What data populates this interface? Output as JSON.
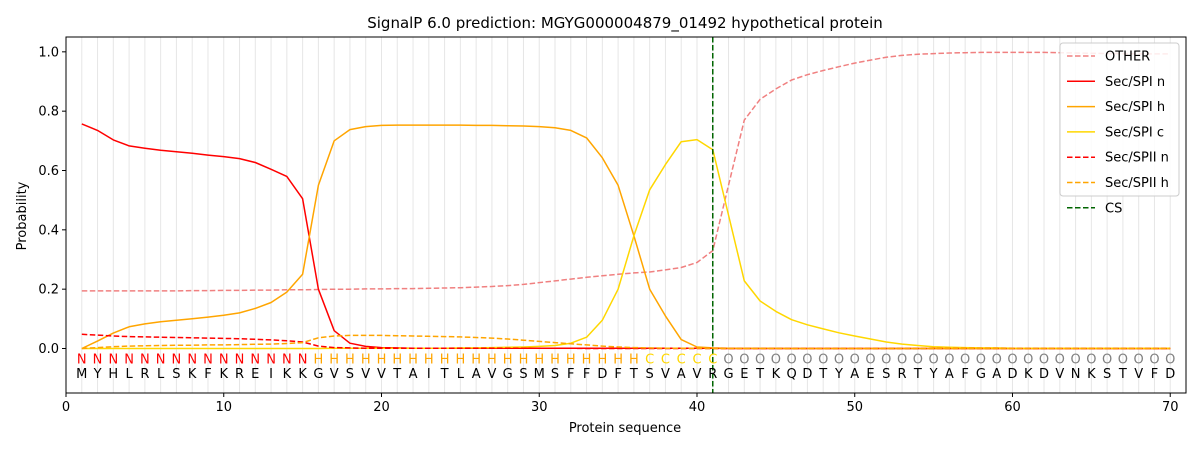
{
  "chart_data": {
    "type": "line",
    "title": "SignalP 6.0 prediction: MGYG000004879_01492 hypothetical protein",
    "xlabel": "Protein sequence",
    "ylabel": "Probability",
    "xlim": [
      0,
      71
    ],
    "ylim": [
      -0.15,
      1.05
    ],
    "xticks": [
      "0",
      "10",
      "20",
      "30",
      "40",
      "50",
      "60",
      "70"
    ],
    "yticks": [
      "0.0",
      "0.2",
      "0.4",
      "0.6",
      "0.8",
      "1.0"
    ],
    "legend_position": "top-right",
    "cleavage_site": 41,
    "sequence": [
      "M",
      "Y",
      "H",
      "L",
      "R",
      "L",
      "S",
      "K",
      "F",
      "K",
      "R",
      "E",
      "I",
      "K",
      "K",
      "G",
      "V",
      "S",
      "V",
      "V",
      "T",
      "A",
      "I",
      "T",
      "L",
      "A",
      "V",
      "G",
      "S",
      "M",
      "S",
      "F",
      "F",
      "D",
      "F",
      "T",
      "S",
      "V",
      "A",
      "V",
      "R",
      "G",
      "E",
      "T",
      "K",
      "Q",
      "D",
      "T",
      "Y",
      "A",
      "E",
      "S",
      "R",
      "T",
      "Y",
      "A",
      "F",
      "G",
      "A",
      "D",
      "K",
      "D",
      "V",
      "N",
      "K",
      "S",
      "T",
      "V",
      "F",
      "D"
    ],
    "region_labels": [
      "N",
      "N",
      "N",
      "N",
      "N",
      "N",
      "N",
      "N",
      "N",
      "N",
      "N",
      "N",
      "N",
      "N",
      "N",
      "H",
      "H",
      "H",
      "H",
      "H",
      "H",
      "H",
      "H",
      "H",
      "H",
      "H",
      "H",
      "H",
      "H",
      "H",
      "H",
      "H",
      "H",
      "H",
      "H",
      "H",
      "C",
      "C",
      "C",
      "C",
      "C",
      "O",
      "O",
      "O",
      "O",
      "O",
      "O",
      "O",
      "O",
      "O",
      "O",
      "O",
      "O",
      "O",
      "O",
      "O",
      "O",
      "O",
      "O",
      "O",
      "O",
      "O",
      "O",
      "O",
      "O",
      "O",
      "O",
      "O",
      "O",
      "O",
      "O"
    ],
    "region_colors": {
      "N": "#ff0000",
      "H": "#ffa500",
      "C": "#ffd700",
      "O": "#808080"
    },
    "series": [
      {
        "name": "OTHER",
        "color": "#f08080",
        "dash": "dashed",
        "values": [
          0.194,
          0.194,
          0.194,
          0.194,
          0.194,
          0.194,
          0.194,
          0.195,
          0.195,
          0.196,
          0.196,
          0.197,
          0.197,
          0.198,
          0.198,
          0.199,
          0.2,
          0.2,
          0.201,
          0.201,
          0.202,
          0.202,
          0.203,
          0.204,
          0.205,
          0.207,
          0.209,
          0.212,
          0.216,
          0.222,
          0.228,
          0.234,
          0.24,
          0.245,
          0.25,
          0.255,
          0.258,
          0.265,
          0.273,
          0.29,
          0.33,
          0.55,
          0.77,
          0.84,
          0.875,
          0.905,
          0.923,
          0.937,
          0.95,
          0.962,
          0.972,
          0.982,
          0.988,
          0.992,
          0.994,
          0.996,
          0.997,
          0.998,
          0.998,
          0.998,
          0.998,
          0.998,
          0.997,
          0.996,
          0.995,
          0.994,
          0.994,
          0.993,
          0.993,
          0.993
        ]
      },
      {
        "name": "Sec/SPI n",
        "color": "#ff0000",
        "dash": "solid",
        "values": [
          0.757,
          0.735,
          0.703,
          0.683,
          0.675,
          0.668,
          0.663,
          0.658,
          0.652,
          0.647,
          0.64,
          0.627,
          0.604,
          0.58,
          0.505,
          0.2,
          0.06,
          0.018,
          0.007,
          0.003,
          0.002,
          0.001,
          0.001,
          0.001,
          0.001,
          0.001,
          0.001,
          0.001,
          0.001,
          0.001,
          0.001,
          0.001,
          0.001,
          0.001,
          0.001,
          0.001,
          0.001,
          0.001,
          0.001,
          0.001,
          0.001,
          0.0,
          0.0,
          0.0,
          0.0,
          0.0,
          0.0,
          0.0,
          0.0,
          0.0,
          0.0,
          0.0,
          0.0,
          0.0,
          0.0,
          0.0,
          0.0,
          0.0,
          0.0,
          0.0,
          0.0,
          0.0,
          0.0,
          0.0,
          0.0,
          0.0,
          0.0,
          0.0,
          0.0,
          0.0
        ]
      },
      {
        "name": "Sec/SPI h",
        "color": "#ffa500",
        "dash": "solid",
        "values": [
          0.0,
          0.025,
          0.052,
          0.073,
          0.083,
          0.09,
          0.095,
          0.1,
          0.106,
          0.112,
          0.12,
          0.135,
          0.155,
          0.19,
          0.25,
          0.55,
          0.7,
          0.738,
          0.748,
          0.752,
          0.753,
          0.753,
          0.753,
          0.753,
          0.753,
          0.752,
          0.752,
          0.751,
          0.75,
          0.748,
          0.744,
          0.735,
          0.71,
          0.643,
          0.55,
          0.38,
          0.2,
          0.11,
          0.03,
          0.005,
          0.002,
          0.001,
          0.001,
          0.001,
          0.001,
          0.0,
          0.0,
          0.0,
          0.0,
          0.0,
          0.0,
          0.0,
          0.0,
          0.0,
          0.0,
          0.0,
          0.0,
          0.0,
          0.0,
          0.0,
          0.0,
          0.0,
          0.0,
          0.0,
          0.0,
          0.0,
          0.0,
          0.0,
          0.0,
          0.0
        ]
      },
      {
        "name": "Sec/SPI c",
        "color": "#ffd700",
        "dash": "solid",
        "values": [
          0.0,
          0.0,
          0.0,
          0.0,
          0.0,
          0.0,
          0.0,
          0.0,
          0.0,
          0.0,
          0.0,
          0.0,
          0.0,
          0.0,
          0.0,
          0.0,
          0.001,
          0.001,
          0.001,
          0.001,
          0.001,
          0.001,
          0.001,
          0.001,
          0.002,
          0.002,
          0.003,
          0.004,
          0.005,
          0.007,
          0.01,
          0.018,
          0.038,
          0.095,
          0.2,
          0.38,
          0.535,
          0.62,
          0.697,
          0.704,
          0.67,
          0.45,
          0.228,
          0.16,
          0.125,
          0.097,
          0.08,
          0.066,
          0.053,
          0.042,
          0.032,
          0.022,
          0.015,
          0.01,
          0.006,
          0.004,
          0.003,
          0.002,
          0.002,
          0.001,
          0.001,
          0.001,
          0.001,
          0.001,
          0.001,
          0.001,
          0.001,
          0.001,
          0.001,
          0.001
        ]
      },
      {
        "name": "Sec/SPII n",
        "color": "#ff0000",
        "dash": "dashed",
        "values": [
          0.048,
          0.045,
          0.042,
          0.04,
          0.039,
          0.038,
          0.037,
          0.036,
          0.035,
          0.034,
          0.033,
          0.031,
          0.029,
          0.026,
          0.022,
          0.008,
          0.003,
          0.002,
          0.001,
          0.001,
          0.001,
          0.001,
          0.001,
          0.001,
          0.001,
          0.001,
          0.001,
          0.001,
          0.001,
          0.001,
          0.001,
          0.001,
          0.0,
          0.0,
          0.0,
          0.0,
          0.0,
          0.0,
          0.0,
          0.0,
          0.0,
          0.0,
          0.0,
          0.0,
          0.0,
          0.0,
          0.0,
          0.0,
          0.0,
          0.0,
          0.0,
          0.0,
          0.0,
          0.0,
          0.0,
          0.0,
          0.0,
          0.0,
          0.0,
          0.0,
          0.0,
          0.0,
          0.0,
          0.0,
          0.0,
          0.0,
          0.0,
          0.0,
          0.0,
          0.0
        ]
      },
      {
        "name": "Sec/SPII h",
        "color": "#ffa500",
        "dash": "dashed",
        "values": [
          0.0,
          0.003,
          0.006,
          0.008,
          0.009,
          0.01,
          0.011,
          0.011,
          0.012,
          0.012,
          0.013,
          0.014,
          0.015,
          0.017,
          0.02,
          0.036,
          0.042,
          0.044,
          0.044,
          0.044,
          0.043,
          0.042,
          0.041,
          0.04,
          0.039,
          0.037,
          0.035,
          0.032,
          0.028,
          0.024,
          0.02,
          0.016,
          0.012,
          0.008,
          0.005,
          0.003,
          0.002,
          0.001,
          0.001,
          0.001,
          0.0,
          0.0,
          0.0,
          0.0,
          0.0,
          0.0,
          0.0,
          0.0,
          0.0,
          0.0,
          0.0,
          0.0,
          0.0,
          0.0,
          0.0,
          0.0,
          0.0,
          0.0,
          0.0,
          0.0,
          0.0,
          0.0,
          0.0,
          0.0,
          0.0,
          0.0,
          0.0,
          0.0,
          0.0,
          0.0
        ]
      },
      {
        "name": "CS",
        "color": "#006400",
        "dash": "dashed",
        "values": []
      }
    ]
  }
}
